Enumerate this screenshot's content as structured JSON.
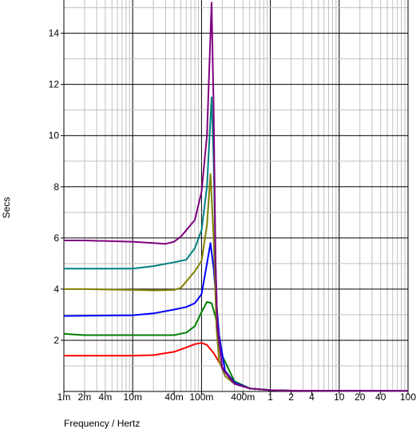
{
  "chart_data": {
    "type": "line",
    "xlabel": "Frequency / Hertz",
    "ylabel": "Secs",
    "xscale": "log",
    "xlim": [
      0.001,
      100
    ],
    "ylim": [
      0,
      15.3
    ],
    "grid": true,
    "x_ticks": [
      {
        "value": 0.001,
        "label": "1m"
      },
      {
        "value": 0.002,
        "label": "2m"
      },
      {
        "value": 0.004,
        "label": "4m"
      },
      {
        "value": 0.01,
        "label": "10m"
      },
      {
        "value": 0.04,
        "label": "40m"
      },
      {
        "value": 0.1,
        "label": "100m"
      },
      {
        "value": 0.4,
        "label": "400m"
      },
      {
        "value": 1,
        "label": "1"
      },
      {
        "value": 2,
        "label": "2"
      },
      {
        "value": 4,
        "label": "4"
      },
      {
        "value": 10,
        "label": "10"
      },
      {
        "value": 20,
        "label": "20"
      },
      {
        "value": 40,
        "label": "40"
      },
      {
        "value": 100,
        "label": "100"
      }
    ],
    "y_ticks": [
      {
        "value": 2,
        "label": "2"
      },
      {
        "value": 4,
        "label": "4"
      },
      {
        "value": 6,
        "label": "6"
      },
      {
        "value": 8,
        "label": "8"
      },
      {
        "value": 10,
        "label": "10"
      },
      {
        "value": 12,
        "label": "12"
      },
      {
        "value": 14,
        "label": "14"
      }
    ],
    "series": [
      {
        "color": "#ff0000",
        "x": [
          0.001,
          0.01,
          0.02,
          0.04,
          0.06,
          0.08,
          0.1,
          0.12,
          0.15,
          0.2,
          0.3,
          0.5,
          1,
          2,
          100
        ],
        "y": [
          1.4,
          1.4,
          1.42,
          1.55,
          1.72,
          1.85,
          1.9,
          1.82,
          1.5,
          0.95,
          0.35,
          0.12,
          0.05,
          0.03,
          0.02
        ]
      },
      {
        "color": "#008000",
        "x": [
          0.001,
          0.002,
          0.01,
          0.02,
          0.04,
          0.06,
          0.08,
          0.1,
          0.12,
          0.14,
          0.16,
          0.2,
          0.3,
          0.5,
          1,
          2,
          100
        ],
        "y": [
          2.25,
          2.2,
          2.2,
          2.2,
          2.2,
          2.3,
          2.55,
          3.1,
          3.5,
          3.45,
          2.9,
          1.4,
          0.4,
          0.12,
          0.05,
          0.03,
          0.02
        ]
      },
      {
        "color": "#0000ff",
        "x": [
          0.001,
          0.01,
          0.02,
          0.04,
          0.06,
          0.08,
          0.1,
          0.12,
          0.135,
          0.15,
          0.18,
          0.22,
          0.3,
          0.5,
          1,
          2,
          100
        ],
        "y": [
          2.95,
          2.98,
          3.05,
          3.2,
          3.3,
          3.45,
          3.8,
          5.0,
          5.8,
          4.8,
          2.2,
          0.8,
          0.35,
          0.12,
          0.05,
          0.03,
          0.02
        ]
      },
      {
        "color": "#808000",
        "x": [
          0.001,
          0.002,
          0.01,
          0.02,
          0.04,
          0.05,
          0.06,
          0.08,
          0.1,
          0.12,
          0.135,
          0.15,
          0.165,
          0.18,
          0.22,
          0.3,
          0.5,
          1,
          2,
          100
        ],
        "y": [
          4.0,
          4.0,
          3.97,
          3.95,
          3.97,
          4.05,
          4.3,
          4.7,
          5.1,
          6.5,
          8.5,
          6.0,
          2.5,
          1.2,
          0.6,
          0.3,
          0.12,
          0.05,
          0.03,
          0.02
        ]
      },
      {
        "color": "#008080",
        "x": [
          0.001,
          0.002,
          0.01,
          0.02,
          0.04,
          0.06,
          0.08,
          0.1,
          0.12,
          0.14,
          0.15,
          0.16,
          0.17,
          0.2,
          0.3,
          0.5,
          1,
          2,
          100
        ],
        "y": [
          4.8,
          4.8,
          4.8,
          4.9,
          5.05,
          5.15,
          5.6,
          6.3,
          8.0,
          11.5,
          9.0,
          5.0,
          2.5,
          0.9,
          0.3,
          0.12,
          0.05,
          0.03,
          0.02
        ]
      },
      {
        "color": "#800080",
        "x": [
          0.001,
          0.002,
          0.01,
          0.02,
          0.03,
          0.04,
          0.05,
          0.06,
          0.08,
          0.1,
          0.12,
          0.14,
          0.15,
          0.16,
          0.17,
          0.2,
          0.3,
          0.5,
          1,
          2,
          100
        ],
        "y": [
          5.9,
          5.9,
          5.85,
          5.8,
          5.77,
          5.85,
          6.05,
          6.3,
          6.7,
          7.8,
          10.0,
          15.2,
          11.0,
          5.0,
          2.5,
          0.9,
          0.3,
          0.12,
          0.05,
          0.03,
          0.02
        ]
      }
    ]
  }
}
